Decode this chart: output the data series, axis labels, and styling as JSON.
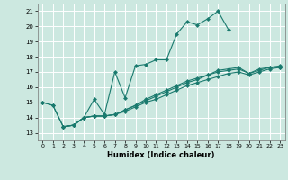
{
  "xlabel": "Humidex (Indice chaleur)",
  "bg_color": "#cce8e0",
  "grid_color": "#ffffff",
  "line_color": "#1a7a6e",
  "xlim": [
    -0.5,
    23.5
  ],
  "ylim": [
    12.5,
    21.5
  ],
  "yticks": [
    13,
    14,
    15,
    16,
    17,
    18,
    19,
    20,
    21
  ],
  "xticks": [
    0,
    1,
    2,
    3,
    4,
    5,
    6,
    7,
    8,
    9,
    10,
    11,
    12,
    13,
    14,
    15,
    16,
    17,
    18,
    19,
    20,
    21,
    22,
    23
  ],
  "line1_x": [
    0,
    1,
    2,
    3,
    4,
    5,
    6,
    7,
    8,
    9,
    10,
    11,
    12,
    13,
    14,
    15,
    16,
    17,
    18
  ],
  "line1_y": [
    15.0,
    14.8,
    13.4,
    13.5,
    14.0,
    15.2,
    14.2,
    17.0,
    15.3,
    17.4,
    17.5,
    17.8,
    17.8,
    19.5,
    20.3,
    20.1,
    20.5,
    21.0,
    19.8
  ],
  "line2_x": [
    0,
    1,
    2,
    3,
    4,
    5,
    6,
    7,
    8,
    9,
    10,
    11,
    12,
    13,
    14,
    15,
    16,
    17,
    18,
    19,
    20,
    21,
    22,
    23
  ],
  "line2_y": [
    15.0,
    14.8,
    13.4,
    13.5,
    14.0,
    14.1,
    14.1,
    14.2,
    14.5,
    14.8,
    15.2,
    15.5,
    15.8,
    16.1,
    16.4,
    16.6,
    16.8,
    17.1,
    17.2,
    17.3,
    16.9,
    17.2,
    17.3,
    17.4
  ],
  "line3_x": [
    2,
    3,
    4,
    5,
    6,
    7,
    8,
    9,
    10,
    11,
    12,
    13,
    14,
    15,
    16,
    17,
    18,
    19,
    20,
    21,
    22,
    23
  ],
  "line3_y": [
    13.4,
    13.5,
    14.0,
    14.1,
    14.1,
    14.2,
    14.5,
    14.8,
    15.1,
    15.4,
    15.7,
    16.0,
    16.3,
    16.5,
    16.8,
    17.0,
    17.1,
    17.2,
    16.9,
    17.1,
    17.3,
    17.3
  ],
  "line4_x": [
    2,
    3,
    4,
    5,
    6,
    7,
    8,
    9,
    10,
    11,
    12,
    13,
    14,
    15,
    16,
    17,
    18,
    19,
    20,
    21,
    22,
    23
  ],
  "line4_y": [
    13.4,
    13.5,
    14.0,
    14.1,
    14.1,
    14.2,
    14.4,
    14.7,
    15.0,
    15.2,
    15.5,
    15.8,
    16.1,
    16.3,
    16.5,
    16.7,
    16.9,
    17.0,
    16.8,
    17.0,
    17.2,
    17.3
  ]
}
